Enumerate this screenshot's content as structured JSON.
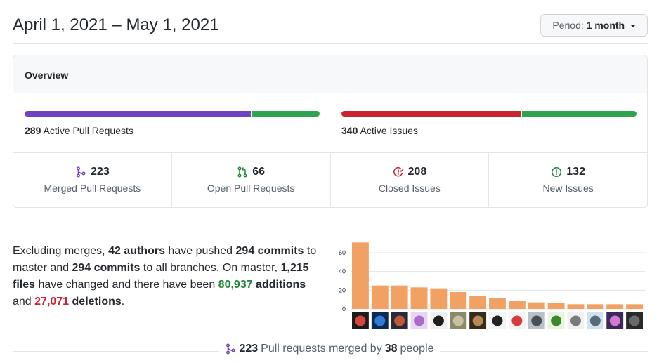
{
  "header": {
    "date_range": "April 1, 2021 – May 1, 2021",
    "period_prefix": "Period:",
    "period_value": "1 month"
  },
  "overview": {
    "title": "Overview",
    "pull_requests": {
      "count": "289",
      "label": "Active Pull Requests",
      "merged_fraction": 0.77,
      "open_fraction": 0.23,
      "merged_color": "#6f42c1",
      "open_color": "#2ea44f"
    },
    "issues": {
      "count": "340",
      "label": "Active Issues",
      "closed_fraction": 0.61,
      "new_fraction": 0.39,
      "closed_color": "#cb2431",
      "new_color": "#2ea44f"
    },
    "stats": [
      {
        "icon": "git-merge-icon",
        "value": "223",
        "label": "Merged Pull Requests",
        "color": "#6f42c1"
      },
      {
        "icon": "git-pull-request-icon",
        "value": "66",
        "label": "Open Pull Requests",
        "color": "#22863a"
      },
      {
        "icon": "issue-closed-icon",
        "value": "208",
        "label": "Closed Issues",
        "color": "#cb2431"
      },
      {
        "icon": "issue-opened-icon",
        "value": "132",
        "label": "New Issues",
        "color": "#22863a"
      }
    ]
  },
  "summary": {
    "t1": "Excluding merges, ",
    "authors": "42 authors",
    "t2": " have pushed ",
    "commits_master": "294 commits",
    "t3": " to master and ",
    "commits_all": "294 commits",
    "t4": " to all branches. On master, ",
    "files": "1,215 files",
    "t5": " have changed and there have been ",
    "additions_num": "80,937",
    "additions_word": " additions",
    "t6": " and ",
    "deletions_num": "27,071",
    "deletions_word": " deletions",
    "t7": "."
  },
  "chart_data": {
    "type": "bar",
    "values": [
      71,
      25,
      25,
      23,
      22,
      18,
      14,
      12,
      9,
      7,
      6,
      5,
      5,
      5,
      5
    ],
    "yticks": [
      0,
      20,
      40,
      60
    ],
    "ylim": [
      0,
      75
    ],
    "bar_color": "#f1a163",
    "grid": true
  },
  "avatars": [
    {
      "bg": "#1c1c1c",
      "fg": "#d6453a"
    },
    {
      "bg": "#0d2a4f",
      "fg": "#2f7cd6"
    },
    {
      "bg": "#2a2a3a",
      "fg": "#c0583a"
    },
    {
      "bg": "#e8d6f2",
      "fg": "#a76bd1"
    },
    {
      "bg": "#f0f0f0",
      "fg": "#1f1f1f"
    },
    {
      "bg": "#8a8a6a",
      "fg": "#c9c2a0"
    },
    {
      "bg": "#3a2a1a",
      "fg": "#b58a5a"
    },
    {
      "bg": "#f4f4f4",
      "fg": "#222222"
    },
    {
      "bg": "#f4f4f4",
      "fg": "#d83b3b"
    },
    {
      "bg": "#b8c0c8",
      "fg": "#4a4f55"
    },
    {
      "bg": "#e8f4e0",
      "fg": "#3a8a2a"
    },
    {
      "bg": "#f0f0f0",
      "fg": "#7a7a7a"
    },
    {
      "bg": "#cfe2ee",
      "fg": "#5a6a7a"
    },
    {
      "bg": "#3a2a5a",
      "fg": "#d07ad0"
    },
    {
      "bg": "#2a2a2a",
      "fg": "#6a6a6a"
    }
  ],
  "footer": {
    "merged_count": "223",
    "text1": " Pull requests merged by ",
    "people_count": "38",
    "text2": " people"
  }
}
